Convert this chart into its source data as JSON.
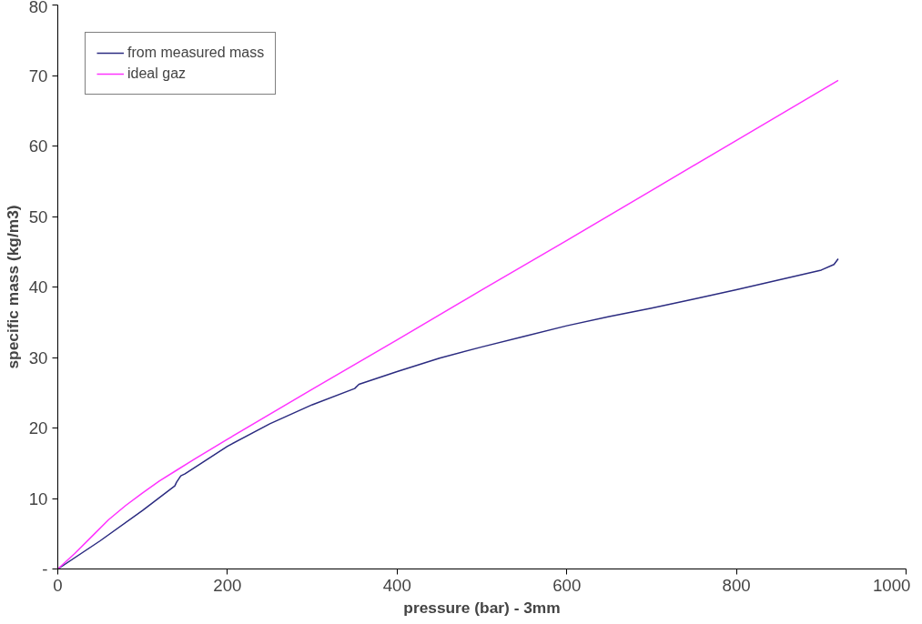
{
  "chart_data": {
    "type": "line",
    "xlabel": "pressure (bar) - 3mm",
    "ylabel": "specific mass (kg/m3)",
    "xlim": [
      0,
      1000
    ],
    "xticks": [
      0,
      200,
      400,
      600,
      800,
      1000
    ],
    "ylim": [
      0,
      80
    ],
    "yticks": [
      {
        "value": 0,
        "label": "-"
      },
      10,
      20,
      30,
      40,
      50,
      60,
      70,
      80
    ],
    "grid": false,
    "legend": "top left",
    "marker": "none",
    "line_style": "solid",
    "series": [
      {
        "name": "from measured mass",
        "color": "#2b2b80",
        "x": [
          0,
          50,
          100,
          138,
          140,
          145,
          150,
          200,
          250,
          300,
          350,
          355,
          400,
          450,
          500,
          550,
          600,
          650,
          700,
          750,
          800,
          850,
          900,
          915,
          920
        ],
        "values": [
          0,
          4,
          8.3,
          11.8,
          12.3,
          13.2,
          13.5,
          17.4,
          20.6,
          23.3,
          25.6,
          26.2,
          28.0,
          29.9,
          31.5,
          33.0,
          34.5,
          35.8,
          37.0,
          38.3,
          39.6,
          41.0,
          42.4,
          43.2,
          44.0
        ]
      },
      {
        "name": "ideal gaz",
        "color": "#ff33ff",
        "x": [
          0,
          20,
          40,
          60,
          80,
          100,
          120,
          140,
          160,
          200,
          300,
          400,
          500,
          600,
          700,
          800,
          920
        ],
        "values": [
          0,
          2.2,
          4.6,
          7.0,
          9.0,
          10.8,
          12.5,
          14.0,
          15.5,
          18.4,
          25.5,
          32.5,
          39.6,
          46.6,
          53.7,
          60.8,
          69.3
        ]
      }
    ]
  }
}
